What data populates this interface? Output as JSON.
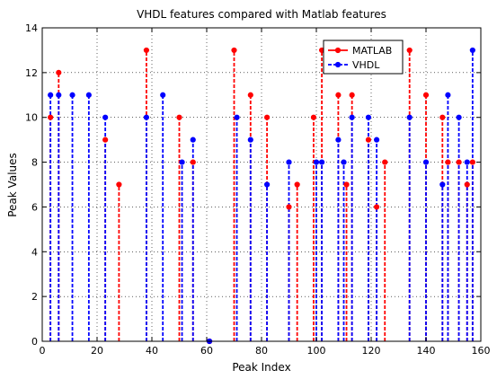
{
  "chart_data": {
    "type": "stem",
    "title": "VHDL features compared with Matlab features",
    "xlabel": "Peak Index",
    "ylabel": "Peak Values",
    "xlim": [
      0,
      160
    ],
    "ylim": [
      0,
      14
    ],
    "xticks": [
      0,
      20,
      40,
      60,
      80,
      100,
      120,
      140,
      160
    ],
    "yticks": [
      0,
      2,
      4,
      6,
      8,
      10,
      12,
      14
    ],
    "grid": true,
    "legend_position": "top-right",
    "series": [
      {
        "name": "MATLAB",
        "color": "#ff0000",
        "points": [
          [
            3,
            10
          ],
          [
            6,
            12
          ],
          [
            23,
            9
          ],
          [
            28,
            7
          ],
          [
            38,
            13
          ],
          [
            50,
            10
          ],
          [
            55,
            8
          ],
          [
            61,
            0
          ],
          [
            70,
            13
          ],
          [
            76,
            11
          ],
          [
            82,
            10
          ],
          [
            90,
            6
          ],
          [
            93,
            7
          ],
          [
            99,
            10
          ],
          [
            102,
            13
          ],
          [
            108,
            11
          ],
          [
            111,
            7
          ],
          [
            113,
            11
          ],
          [
            119,
            9
          ],
          [
            122,
            6
          ],
          [
            125,
            8
          ],
          [
            134,
            13
          ],
          [
            140,
            11
          ],
          [
            146,
            10
          ],
          [
            148,
            8
          ],
          [
            152,
            8
          ],
          [
            155,
            7
          ],
          [
            157,
            8
          ]
        ]
      },
      {
        "name": "VHDL",
        "color": "#0000ff",
        "points": [
          [
            3,
            11
          ],
          [
            6,
            11
          ],
          [
            11,
            11
          ],
          [
            17,
            11
          ],
          [
            23,
            10
          ],
          [
            38,
            10
          ],
          [
            44,
            11
          ],
          [
            51,
            8
          ],
          [
            55,
            9
          ],
          [
            61,
            0
          ],
          [
            71,
            10
          ],
          [
            76,
            9
          ],
          [
            82,
            7
          ],
          [
            90,
            8
          ],
          [
            100,
            8
          ],
          [
            102,
            8
          ],
          [
            108,
            9
          ],
          [
            110,
            8
          ],
          [
            113,
            10
          ],
          [
            119,
            10
          ],
          [
            122,
            9
          ],
          [
            134,
            10
          ],
          [
            140,
            8
          ],
          [
            146,
            7
          ],
          [
            148,
            11
          ],
          [
            152,
            10
          ],
          [
            155,
            8
          ],
          [
            157,
            13
          ]
        ]
      }
    ]
  }
}
